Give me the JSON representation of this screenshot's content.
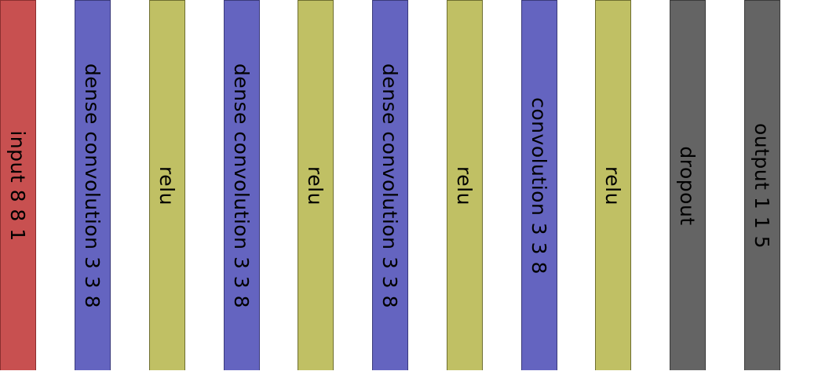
{
  "layers": [
    {
      "label": "input 8 8 1",
      "type": "input",
      "color": "#c85050",
      "border": "#8a2f2f"
    },
    {
      "label": "dense convolution 3 3 8",
      "type": "dense-convolution",
      "color": "#6464c0",
      "border": "#3a3a7a"
    },
    {
      "label": "relu",
      "type": "relu",
      "color": "#c0c064",
      "border": "#6e6e30"
    },
    {
      "label": "dense convolution 3 3 8",
      "type": "dense-convolution",
      "color": "#6464c0",
      "border": "#3a3a7a"
    },
    {
      "label": "relu",
      "type": "relu",
      "color": "#c0c064",
      "border": "#6e6e30"
    },
    {
      "label": "dense convolution 3 3 8",
      "type": "dense-convolution",
      "color": "#6464c0",
      "border": "#3a3a7a"
    },
    {
      "label": "relu",
      "type": "relu",
      "color": "#c0c064",
      "border": "#6e6e30"
    },
    {
      "label": "convolution 3 3 8",
      "type": "convolution",
      "color": "#6464c0",
      "border": "#3a3a7a"
    },
    {
      "label": "relu",
      "type": "relu",
      "color": "#c0c064",
      "border": "#6e6e30"
    },
    {
      "label": "dropout",
      "type": "dropout",
      "color": "#646464",
      "border": "#3a3a3a"
    },
    {
      "label": "output 1 1 5",
      "type": "output",
      "color": "#646464",
      "border": "#3a3a3a"
    }
  ]
}
